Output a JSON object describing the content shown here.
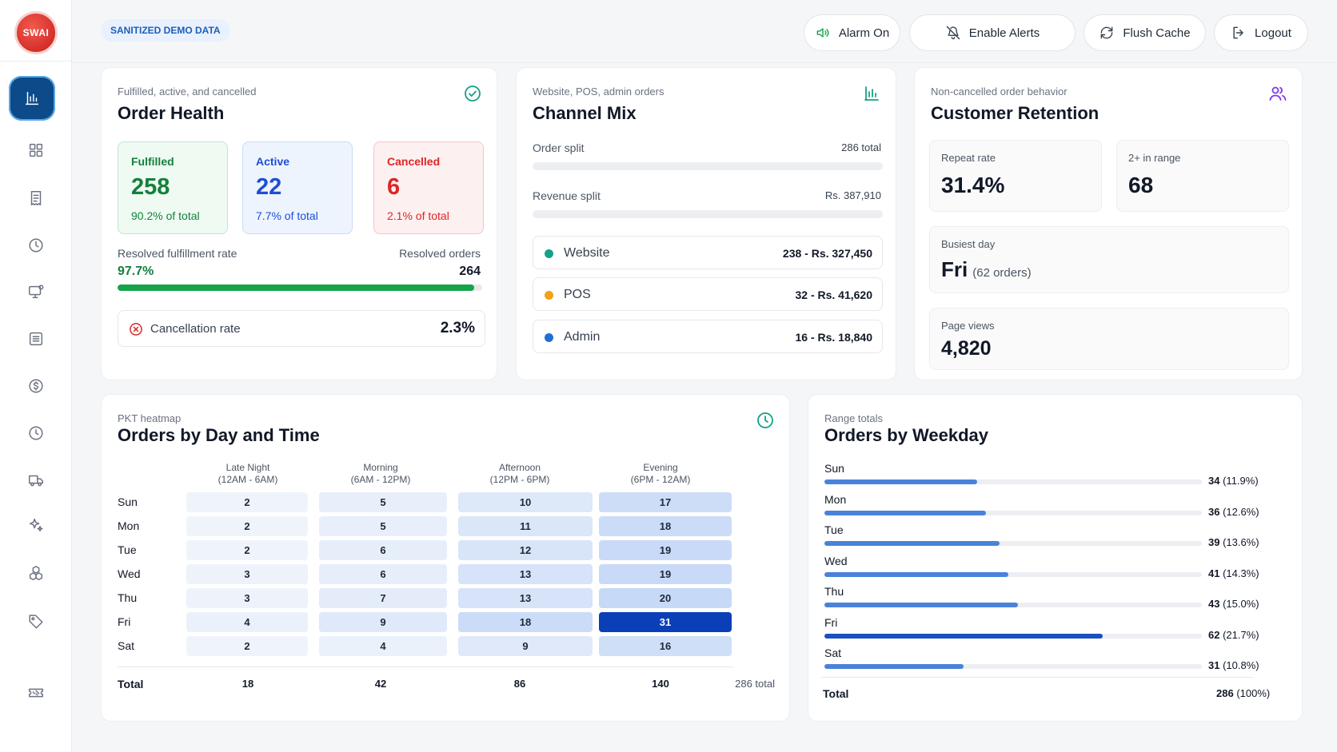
{
  "app": {
    "logo_text": "SWAI"
  },
  "topbar": {
    "badge": "SANITIZED DEMO DATA",
    "buttons": [
      {
        "label": "Alarm On",
        "icon": "speaker-icon"
      },
      {
        "label": "Enable Alerts",
        "icon": "bell-off-icon"
      },
      {
        "label": "Flush Cache",
        "icon": "refresh-icon"
      },
      {
        "label": "Logout",
        "icon": "logout-icon"
      }
    ]
  },
  "sidebar": {
    "items": [
      {
        "icon": "bar-chart-icon",
        "active": true
      },
      {
        "icon": "grid-icon"
      },
      {
        "icon": "receipt-icon"
      },
      {
        "icon": "clock-icon"
      },
      {
        "icon": "monitor-settings-icon"
      },
      {
        "icon": "list-icon"
      },
      {
        "icon": "dollar-icon"
      },
      {
        "icon": "history-icon"
      },
      {
        "icon": "truck-icon"
      },
      {
        "icon": "sparkle-icon"
      },
      {
        "icon": "boxes-icon"
      },
      {
        "icon": "tag-icon"
      },
      {
        "icon": "ticket-icon"
      }
    ]
  },
  "order_health": {
    "subtitle": "Fulfilled, active, and cancelled",
    "title": "Order Health",
    "fulfilled": {
      "label": "Fulfilled",
      "value": "258",
      "pct": "90.2% of total"
    },
    "active": {
      "label": "Active",
      "value": "22",
      "pct": "7.7% of total"
    },
    "cancelled": {
      "label": "Cancelled",
      "value": "6",
      "pct": "2.1% of total"
    },
    "resolved_rate_label": "Resolved fulfillment rate",
    "resolved_rate_value": "97.7%",
    "resolved_rate_fraction": 0.977,
    "resolved_orders_label": "Resolved orders",
    "resolved_orders_value": "264",
    "cancellation_label": "Cancellation rate",
    "cancellation_value": "2.3%"
  },
  "channel_mix": {
    "subtitle": "Website, POS, admin orders",
    "title": "Channel Mix",
    "order_split_label": "Order split",
    "order_split_value": "286 total",
    "revenue_split_label": "Revenue split",
    "revenue_split_value": "Rs. 387,910",
    "channels": [
      {
        "name": "Website",
        "value": "238 - Rs. 327,450",
        "color": "#14a08a"
      },
      {
        "name": "POS",
        "value": "32 - Rs. 41,620",
        "color": "#f2a217"
      },
      {
        "name": "Admin",
        "value": "16 - Rs. 18,840",
        "color": "#1f6fd6"
      }
    ]
  },
  "retention": {
    "subtitle": "Non-cancelled order behavior",
    "title": "Customer Retention",
    "repeat_label": "Repeat rate",
    "repeat_value": "31.4%",
    "range_label": "2+ in range",
    "range_value": "68",
    "busiest_label": "Busiest day",
    "busiest_value": "Fri",
    "busiest_note": "(62 orders)",
    "views_label": "Page views",
    "views_value": "4,820"
  },
  "heatmap": {
    "subtitle": "PKT heatmap",
    "title": "Orders by Day and Time",
    "columns": [
      {
        "name": "Late Night",
        "range": "(12AM - 6AM)"
      },
      {
        "name": "Morning",
        "range": "(6AM - 12PM)"
      },
      {
        "name": "Afternoon",
        "range": "(12PM - 6PM)"
      },
      {
        "name": "Evening",
        "range": "(6PM - 12AM)"
      }
    ],
    "rows": [
      {
        "day": "Sun",
        "values": [
          2,
          5,
          10,
          17
        ]
      },
      {
        "day": "Mon",
        "values": [
          2,
          5,
          11,
          18
        ]
      },
      {
        "day": "Tue",
        "values": [
          2,
          6,
          12,
          19
        ]
      },
      {
        "day": "Wed",
        "values": [
          3,
          6,
          13,
          19
        ]
      },
      {
        "day": "Thu",
        "values": [
          3,
          7,
          13,
          20
        ]
      },
      {
        "day": "Fri",
        "values": [
          4,
          9,
          18,
          31
        ]
      },
      {
        "day": "Sat",
        "values": [
          2,
          4,
          9,
          16
        ]
      }
    ],
    "total_label": "Total",
    "totals": [
      18,
      42,
      86,
      140
    ],
    "grand_total": "286 total"
  },
  "weekday": {
    "subtitle": "Range totals",
    "title": "Orders by Weekday",
    "days": [
      {
        "day": "Sun",
        "count": "34",
        "pct": "(11.9%)",
        "value": 34
      },
      {
        "day": "Mon",
        "count": "36",
        "pct": "(12.6%)",
        "value": 36
      },
      {
        "day": "Tue",
        "count": "39",
        "pct": "(13.6%)",
        "value": 39
      },
      {
        "day": "Wed",
        "count": "41",
        "pct": "(14.3%)",
        "value": 41
      },
      {
        "day": "Thu",
        "count": "43",
        "pct": "(15.0%)",
        "value": 43
      },
      {
        "day": "Fri",
        "count": "62",
        "pct": "(21.7%)",
        "value": 62
      },
      {
        "day": "Sat",
        "count": "31",
        "pct": "(10.8%)",
        "value": 31
      }
    ],
    "total_label": "Total",
    "total_value": "286",
    "total_pct": "(100%)"
  }
}
